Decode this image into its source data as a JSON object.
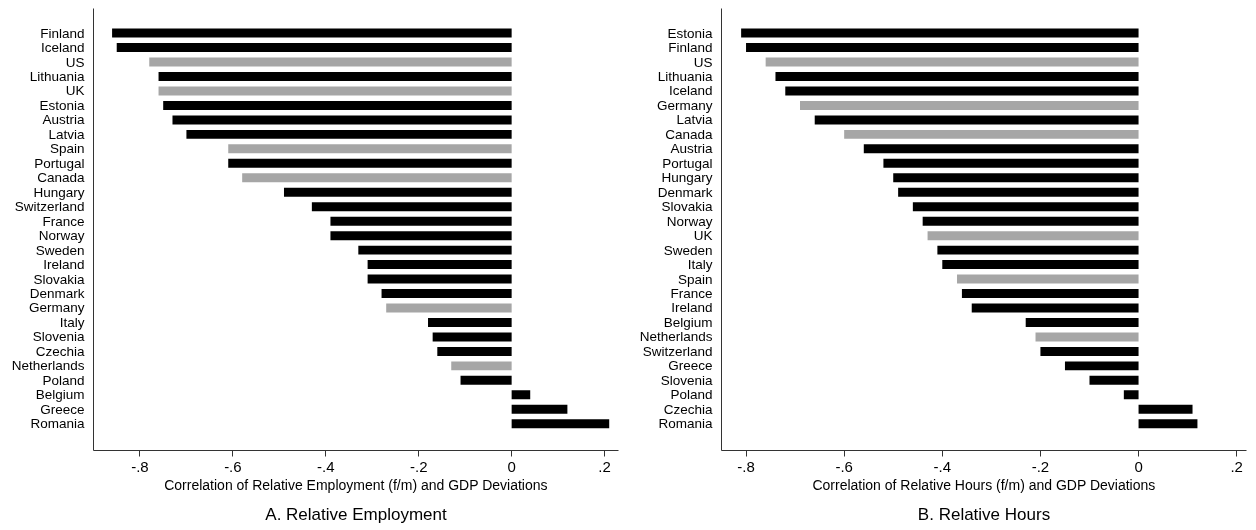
{
  "chart_data": [
    {
      "type": "bar",
      "orientation": "horizontal",
      "title": "A. Relative Employment",
      "xlabel": "Correlation of Relative Employment (f/m) and GDP Deviations",
      "categories": [
        "Finland",
        "Iceland",
        "US",
        "Lithuania",
        "UK",
        "Estonia",
        "Austria",
        "Latvia",
        "Spain",
        "Portugal",
        "Canada",
        "Hungary",
        "Switzerland",
        "France",
        "Norway",
        "Sweden",
        "Ireland",
        "Slovakia",
        "Denmark",
        "Germany",
        "Italy",
        "Slovenia",
        "Czechia",
        "Netherlands",
        "Poland",
        "Belgium",
        "Greece",
        "Romania"
      ],
      "values": [
        -0.86,
        -0.85,
        -0.78,
        -0.76,
        -0.76,
        -0.75,
        -0.73,
        -0.7,
        -0.61,
        -0.61,
        -0.58,
        -0.49,
        -0.43,
        -0.39,
        -0.39,
        -0.33,
        -0.31,
        -0.31,
        -0.28,
        -0.27,
        -0.18,
        -0.17,
        -0.16,
        -0.13,
        -0.11,
        0.04,
        0.12,
        0.21
      ],
      "colors": [
        "#000000",
        "#000000",
        "#a6a6a6",
        "#000000",
        "#a6a6a6",
        "#000000",
        "#000000",
        "#000000",
        "#a6a6a6",
        "#000000",
        "#a6a6a6",
        "#000000",
        "#000000",
        "#000000",
        "#000000",
        "#000000",
        "#000000",
        "#000000",
        "#000000",
        "#a6a6a6",
        "#000000",
        "#000000",
        "#000000",
        "#a6a6a6",
        "#000000",
        "#000000",
        "#000000",
        "#000000"
      ],
      "xlim": [
        -0.9,
        0.23
      ],
      "xticks": [
        {
          "value": -0.8,
          "label": "-.8"
        },
        {
          "value": -0.6,
          "label": "-.6"
        },
        {
          "value": -0.4,
          "label": "-.4"
        },
        {
          "value": -0.2,
          "label": "-.2"
        },
        0,
        {
          "value": 0.2,
          "label": ".2"
        }
      ],
      "grid": false
    },
    {
      "type": "bar",
      "orientation": "horizontal",
      "title": "B. Relative Hours",
      "xlabel": "Correlation of Relative Hours (f/m) and GDP Deviations",
      "categories": [
        "Estonia",
        "Finland",
        "US",
        "Lithuania",
        "Iceland",
        "Germany",
        "Latvia",
        "Canada",
        "Austria",
        "Portugal",
        "Hungary",
        "Denmark",
        "Slovakia",
        "Norway",
        "UK",
        "Sweden",
        "Italy",
        "Spain",
        "France",
        "Ireland",
        "Belgium",
        "Netherlands",
        "Switzerland",
        "Greece",
        "Slovenia",
        "Poland",
        "Czechia",
        "Romania"
      ],
      "values": [
        -0.81,
        -0.8,
        -0.76,
        -0.74,
        -0.72,
        -0.69,
        -0.66,
        -0.6,
        -0.56,
        -0.52,
        -0.5,
        -0.49,
        -0.46,
        -0.44,
        -0.43,
        -0.41,
        -0.4,
        -0.37,
        -0.36,
        -0.34,
        -0.23,
        -0.21,
        -0.2,
        -0.15,
        -0.1,
        -0.03,
        0.11,
        0.12
      ],
      "colors": [
        "#000000",
        "#000000",
        "#a6a6a6",
        "#000000",
        "#000000",
        "#a6a6a6",
        "#000000",
        "#a6a6a6",
        "#000000",
        "#000000",
        "#000000",
        "#000000",
        "#000000",
        "#000000",
        "#a6a6a6",
        "#000000",
        "#000000",
        "#a6a6a6",
        "#000000",
        "#000000",
        "#000000",
        "#a6a6a6",
        "#000000",
        "#000000",
        "#000000",
        "#000000",
        "#000000",
        "#000000"
      ],
      "xlim": [
        -0.85,
        0.22
      ],
      "xticks": [
        {
          "value": -0.8,
          "label": "-.8"
        },
        {
          "value": -0.6,
          "label": "-.6"
        },
        {
          "value": -0.4,
          "label": "-.4"
        },
        {
          "value": -0.2,
          "label": "-.2"
        },
        0,
        {
          "value": 0.2,
          "label": ".2"
        }
      ],
      "grid": false
    }
  ]
}
